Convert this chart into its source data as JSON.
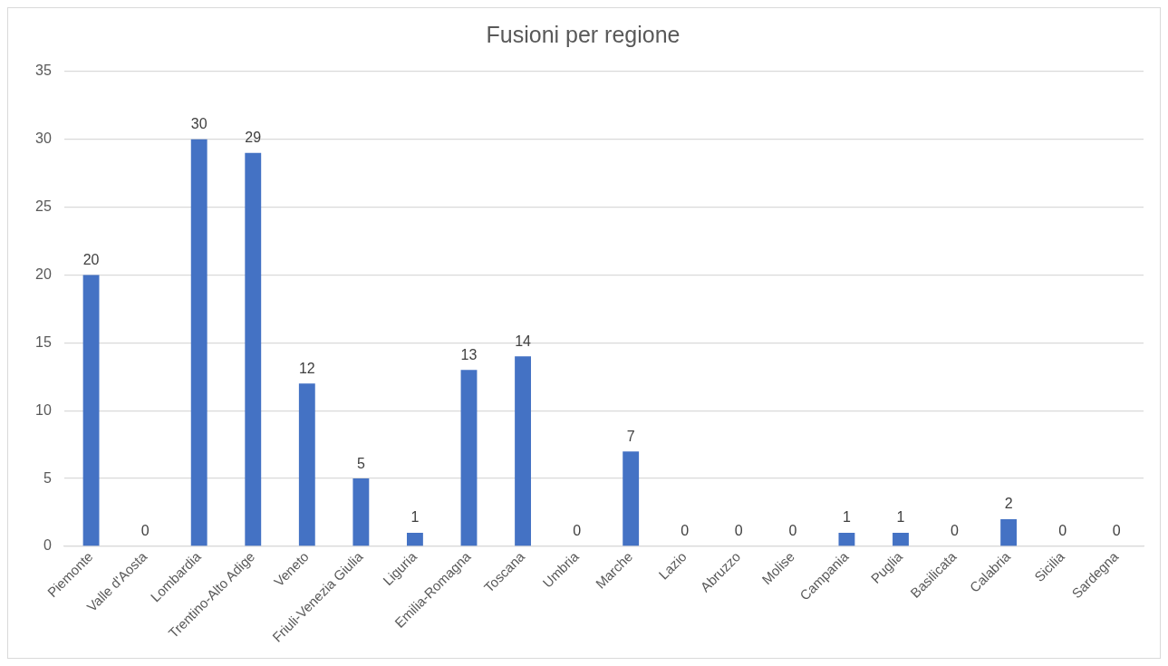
{
  "chart_data": {
    "type": "bar",
    "title": "Fusioni per regione",
    "categories": [
      "Piemonte",
      "Valle d'Aosta",
      "Lombardia",
      "Trentino-Alto Adige",
      "Veneto",
      "Friuli-Venezia Giulia",
      "Liguria",
      "Emilia-Romagna",
      "Toscana",
      "Umbria",
      "Marche",
      "Lazio",
      "Abruzzo",
      "Molise",
      "Campania",
      "Puglia",
      "Basilicata",
      "Calabria",
      "Sicilia",
      "Sardegna"
    ],
    "values": [
      20,
      0,
      30,
      29,
      12,
      5,
      1,
      13,
      14,
      0,
      7,
      0,
      0,
      0,
      1,
      1,
      0,
      2,
      0,
      0
    ],
    "color": "#4472c4",
    "ylim": [
      0,
      35
    ],
    "yticks": [
      0,
      5,
      10,
      15,
      20,
      25,
      30,
      35
    ],
    "grid": "y",
    "data_labels": true
  }
}
